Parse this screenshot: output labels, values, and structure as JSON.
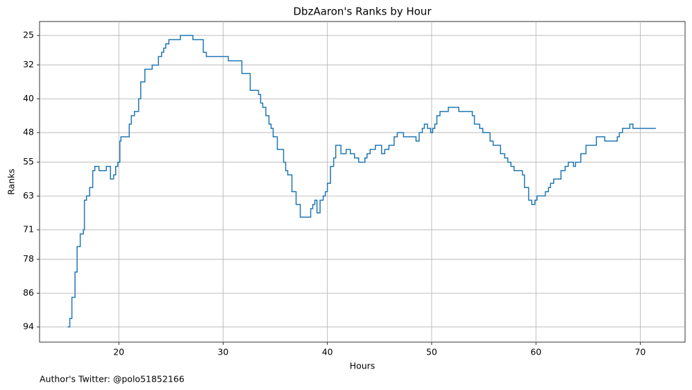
{
  "chart_data": {
    "type": "line",
    "step": "post",
    "title": "DbzAaron's Ranks by Hour",
    "xlabel": "Hours",
    "ylabel": "Ranks",
    "footnote": "Author's Twitter: @polo51852166",
    "color": "#1f77b4",
    "grid": true,
    "y_inverted": true,
    "xlim": [
      12.4,
      74.3
    ],
    "ylim": [
      97.6,
      21.7
    ],
    "xticks": [
      20,
      30,
      40,
      50,
      60,
      70
    ],
    "yticks": [
      25,
      32,
      40,
      48,
      55,
      63,
      71,
      78,
      86,
      94
    ],
    "series": [
      {
        "name": "Ranks",
        "x": [
          15.1,
          15.3,
          15.5,
          15.8,
          16.0,
          16.3,
          16.6,
          16.7,
          16.9,
          17.2,
          17.5,
          17.7,
          18.1,
          18.8,
          19.2,
          19.5,
          19.7,
          19.9,
          20.1,
          20.2,
          21.0,
          21.2,
          21.5,
          21.9,
          22.1,
          22.5,
          23.2,
          23.8,
          24.1,
          24.3,
          24.5,
          24.8,
          25.9,
          27.1,
          28.1,
          28.4,
          30.5,
          31.8,
          32.6,
          33.4,
          33.6,
          33.8,
          34.1,
          34.4,
          34.6,
          34.8,
          35.2,
          35.8,
          36.0,
          36.2,
          36.6,
          37.0,
          37.4,
          38.4,
          38.6,
          38.8,
          39.0,
          39.3,
          39.6,
          39.8,
          40.0,
          40.3,
          40.6,
          40.8,
          41.3,
          41.8,
          42.2,
          42.6,
          43.0,
          43.6,
          43.8,
          44.1,
          44.6,
          45.2,
          45.5,
          45.9,
          46.4,
          46.7,
          47.3,
          48.5,
          48.8,
          49.1,
          49.3,
          49.6,
          49.9,
          50.1,
          50.3,
          50.5,
          50.8,
          51.6,
          52.6,
          53.9,
          54.1,
          54.6,
          54.9,
          55.6,
          55.9,
          56.6,
          57.0,
          57.3,
          57.6,
          57.9,
          58.7,
          58.9,
          59.3,
          59.6,
          59.9,
          60.1,
          60.9,
          61.2,
          61.4,
          61.7,
          62.4,
          62.8,
          63.1,
          63.6,
          63.8,
          64.3,
          64.8,
          65.8,
          66.6,
          67.8,
          68.0,
          68.3,
          69.0,
          69.3,
          71.5
        ],
        "values": [
          94,
          92,
          87,
          81,
          75,
          72,
          71,
          64,
          63,
          61,
          57,
          56,
          57,
          56,
          59,
          58,
          56,
          55,
          50,
          49,
          46,
          44,
          43,
          40,
          36,
          33,
          32,
          30,
          29,
          28,
          27,
          26,
          25,
          26,
          29,
          30,
          31,
          34,
          38,
          39,
          41,
          42,
          44,
          46,
          47,
          49,
          52,
          55,
          57,
          58,
          62,
          65,
          68,
          66,
          65,
          64,
          67,
          64,
          63,
          62,
          60,
          56,
          54,
          51,
          53,
          52,
          53,
          54,
          55,
          54,
          53,
          52,
          51,
          53,
          52,
          51,
          49,
          48,
          49,
          50,
          48,
          47,
          46,
          47,
          48,
          47,
          46,
          44,
          43,
          42,
          43,
          44,
          46,
          47,
          48,
          50,
          51,
          53,
          54,
          55,
          56,
          57,
          58,
          61,
          64,
          65,
          64,
          63,
          62,
          61,
          60,
          59,
          57,
          56,
          55,
          56,
          55,
          53,
          51,
          49,
          50,
          49,
          48,
          47,
          46,
          47,
          47
        ]
      }
    ]
  }
}
